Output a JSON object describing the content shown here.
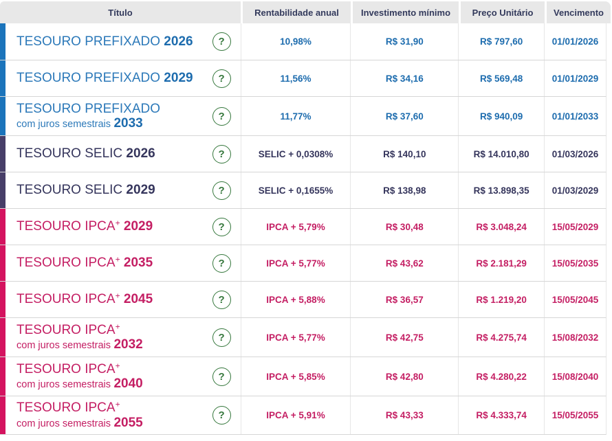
{
  "header": {
    "columns": [
      "Título",
      "Rentabilidade anual",
      "Investimento mínimo",
      "Preço Unitário",
      "Vencimento"
    ]
  },
  "help_icon": "?",
  "colors": {
    "prefixado_blue": "#1b74bb",
    "selic_purple": "#473e68",
    "ipca_pink": "#d4135f",
    "help_green": "#35773c",
    "header_bg": "#e8e8e8",
    "header_text": "#333a5c"
  },
  "bonds": [
    {
      "type": "prefixado",
      "name": "TESOURO PREFIXADO",
      "sup": "",
      "subtitle": "",
      "year": "2026",
      "rate": "10,98%",
      "min_investment": "R$ 31,90",
      "unit_price": "R$ 797,60",
      "maturity": "01/01/2026"
    },
    {
      "type": "prefixado",
      "name": "TESOURO PREFIXADO",
      "sup": "",
      "subtitle": "",
      "year": "2029",
      "rate": "11,56%",
      "min_investment": "R$ 34,16",
      "unit_price": "R$ 569,48",
      "maturity": "01/01/2029"
    },
    {
      "type": "prefixado",
      "name": "TESOURO PREFIXADO",
      "sup": "",
      "subtitle": "com juros semestrais",
      "year": "2033",
      "rate": "11,77%",
      "min_investment": "R$ 37,60",
      "unit_price": "R$ 940,09",
      "maturity": "01/01/2033"
    },
    {
      "type": "selic",
      "name": "TESOURO SELIC",
      "sup": "",
      "subtitle": "",
      "year": "2026",
      "rate": "SELIC + 0,0308%",
      "min_investment": "R$ 140,10",
      "unit_price": "R$ 14.010,80",
      "maturity": "01/03/2026"
    },
    {
      "type": "selic",
      "name": "TESOURO SELIC",
      "sup": "",
      "subtitle": "",
      "year": "2029",
      "rate": "SELIC + 0,1655%",
      "min_investment": "R$ 138,98",
      "unit_price": "R$ 13.898,35",
      "maturity": "01/03/2029"
    },
    {
      "type": "ipca",
      "name": "TESOURO IPCA",
      "sup": "+",
      "subtitle": "",
      "year": "2029",
      "rate": "IPCA + 5,79%",
      "min_investment": "R$ 30,48",
      "unit_price": "R$ 3.048,24",
      "maturity": "15/05/2029"
    },
    {
      "type": "ipca",
      "name": "TESOURO IPCA",
      "sup": "+",
      "subtitle": "",
      "year": "2035",
      "rate": "IPCA + 5,77%",
      "min_investment": "R$ 43,62",
      "unit_price": "R$ 2.181,29",
      "maturity": "15/05/2035"
    },
    {
      "type": "ipca",
      "name": "TESOURO IPCA",
      "sup": "+",
      "subtitle": "",
      "year": "2045",
      "rate": "IPCA + 5,88%",
      "min_investment": "R$ 36,57",
      "unit_price": "R$ 1.219,20",
      "maturity": "15/05/2045"
    },
    {
      "type": "ipca",
      "name": "TESOURO IPCA",
      "sup": "+",
      "subtitle": "com juros semestrais",
      "year": "2032",
      "rate": "IPCA + 5,77%",
      "min_investment": "R$ 42,75",
      "unit_price": "R$ 4.275,74",
      "maturity": "15/08/2032"
    },
    {
      "type": "ipca",
      "name": "TESOURO IPCA",
      "sup": "+",
      "subtitle": "com juros semestrais",
      "year": "2040",
      "rate": "IPCA + 5,85%",
      "min_investment": "R$ 42,80",
      "unit_price": "R$ 4.280,22",
      "maturity": "15/08/2040"
    },
    {
      "type": "ipca",
      "name": "TESOURO IPCA",
      "sup": "+",
      "subtitle": "com juros semestrais",
      "year": "2055",
      "rate": "IPCA + 5,91%",
      "min_investment": "R$ 43,33",
      "unit_price": "R$ 4.333,74",
      "maturity": "15/05/2055"
    }
  ]
}
